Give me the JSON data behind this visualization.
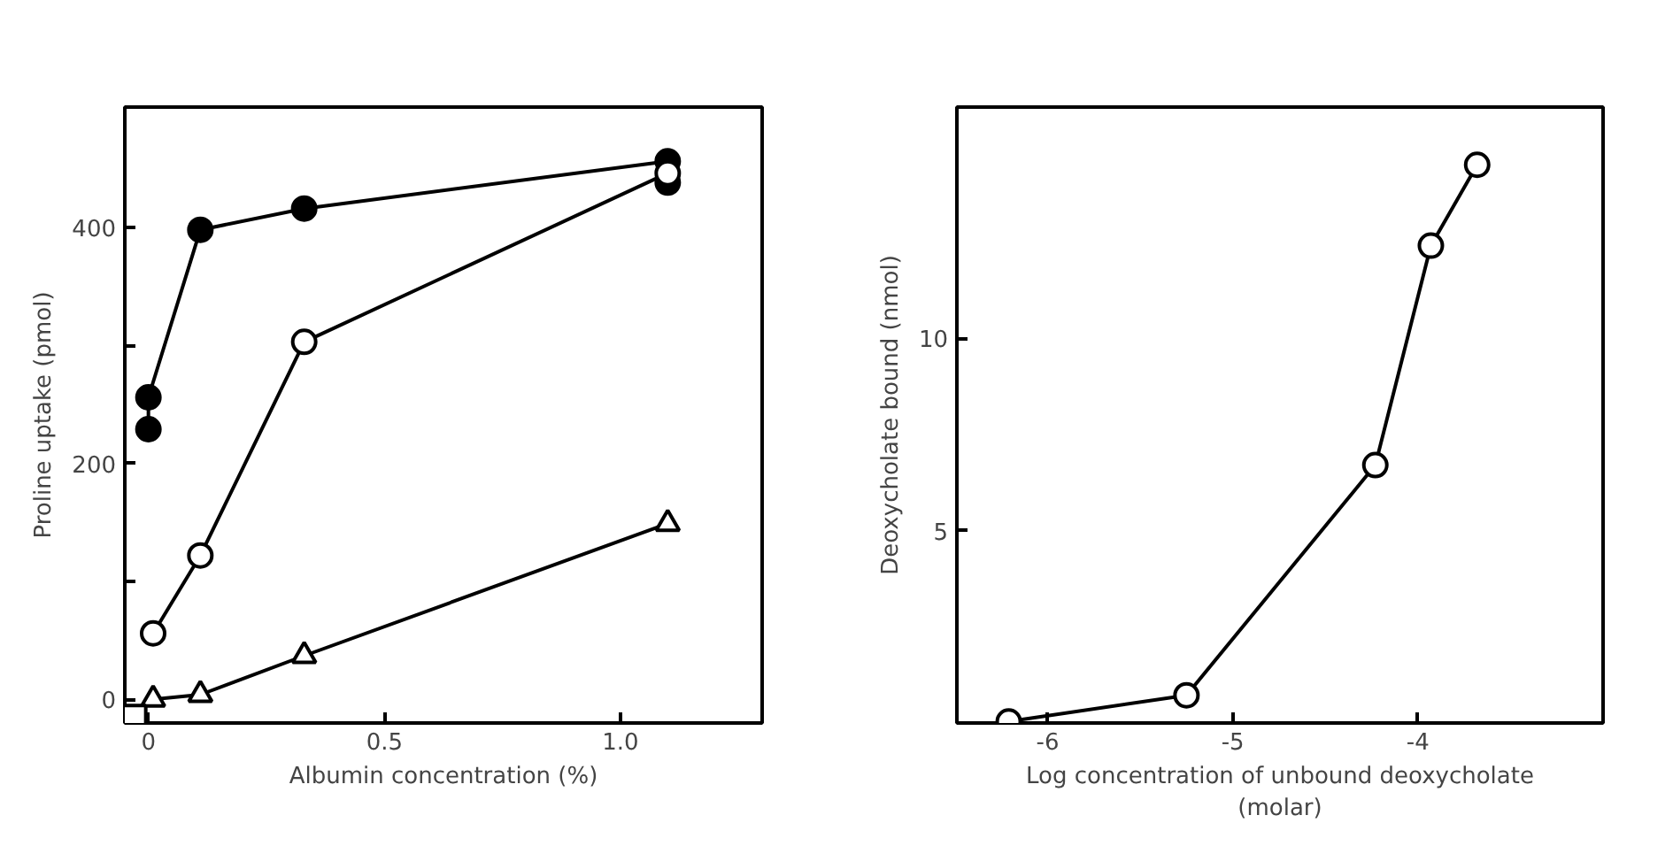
{
  "chart_data": [
    {
      "type": "line",
      "xlabel": "Albumin concentration (%)",
      "ylabel": "Proline uptake (pmol)",
      "xlim": [
        -0.05,
        1.3
      ],
      "ylim": [
        -20,
        502
      ],
      "xticks": [
        0,
        0.5,
        {
          "value": 1,
          "label": "1.0"
        }
      ],
      "yticks": [
        0,
        {
          "value": 100,
          "label": null
        },
        200,
        {
          "value": 300,
          "label": null
        },
        400
      ],
      "grid": false,
      "line_style": "solid",
      "series": [
        {
          "color": "#000000",
          "marker": "circle",
          "x": [
            0,
            0,
            0.11,
            0.33,
            1.1,
            1.1
          ],
          "values": [
            229,
            256,
            398,
            416,
            456,
            438
          ]
        },
        {
          "color": "#000000",
          "marker": "circle",
          "x": [
            0.01,
            0.11,
            0.33,
            1.1
          ],
          "values": [
            56,
            122,
            303,
            446
          ]
        },
        {
          "color": "#000000",
          "marker": "triangle",
          "x": [
            0.01,
            0.11,
            0.33,
            1.1
          ],
          "values": [
            0,
            4,
            37,
            149
          ]
        },
        {
          "color": "#000000",
          "marker": "square",
          "x": [
            -0.03
          ],
          "values": [
            -15
          ]
        }
      ]
    },
    {
      "type": "line",
      "xlabel": "Log concentration of unbound deoxycholate\n(molar)",
      "ylabel": "Deoxycholate bound (nmol)",
      "xlim": [
        -6.49,
        -3.0
      ],
      "ylim": [
        0,
        16
      ],
      "xticks": [
        -6,
        -5,
        -4
      ],
      "yticks": [
        5,
        10
      ],
      "grid": false,
      "line_style": "solid",
      "series": [
        {
          "color": "#000000",
          "marker": "circle",
          "x": [
            -6.21,
            -5.25,
            -4.23,
            -3.93,
            -3.68
          ],
          "values": [
            0.04,
            0.72,
            6.7,
            12.4,
            14.5
          ]
        }
      ]
    }
  ]
}
